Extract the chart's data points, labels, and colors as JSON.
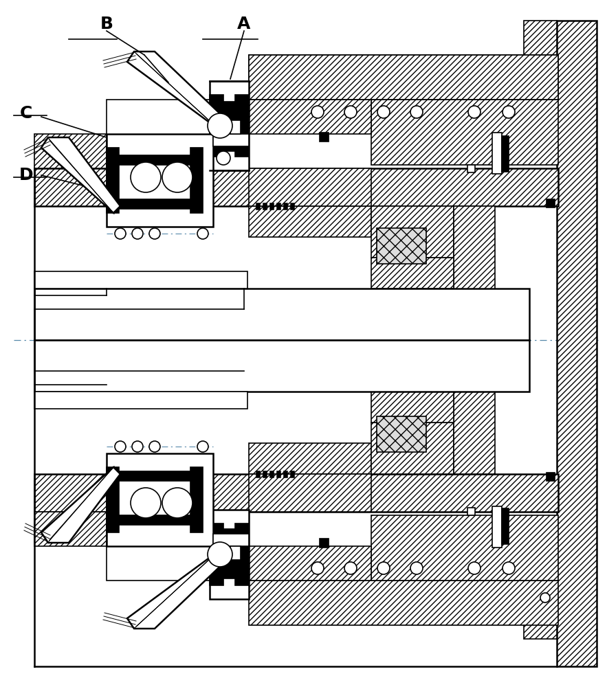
{
  "bg": "#ffffff",
  "lc": "#000000",
  "label_A": "A",
  "label_B": "B",
  "label_C": "C",
  "label_D": "D",
  "fig_width": 8.83,
  "fig_height": 10.0,
  "dpi": 100
}
